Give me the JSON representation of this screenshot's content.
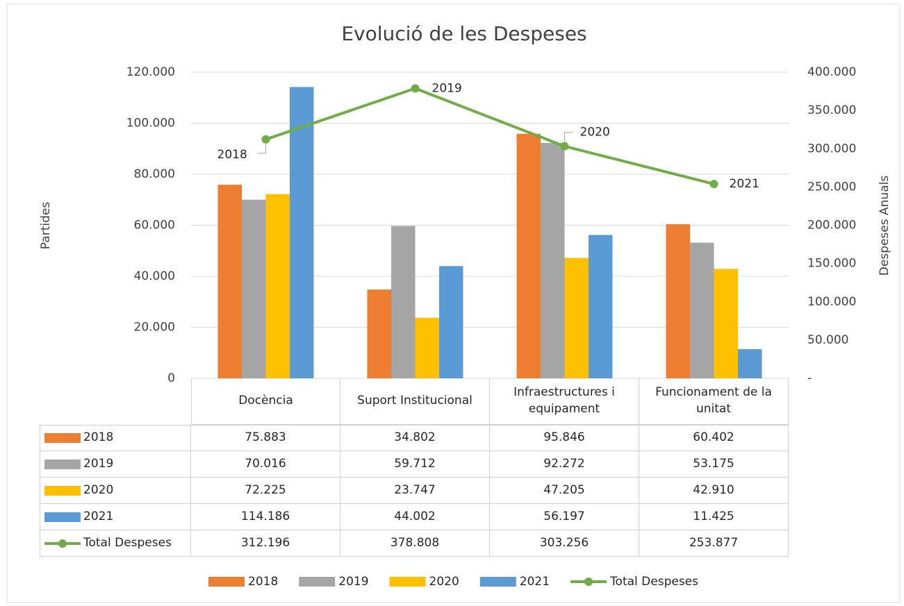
{
  "chart_data": {
    "type": "bar",
    "title": "Evolució de les Despeses",
    "ylabel": "Partides",
    "y2label": "Despeses Anuals",
    "categories": [
      "Docència",
      "Suport Institucional",
      "Infraestructures i equipament",
      "Funcionament de la unitat"
    ],
    "series": [
      {
        "name": "2018",
        "color": "#ed7d31",
        "values": [
          75883,
          34802,
          95846,
          60402
        ],
        "value_labels": [
          "75.883",
          "34.802",
          "95.846",
          "60.402"
        ]
      },
      {
        "name": "2019",
        "color": "#a5a5a5",
        "values": [
          70016,
          59712,
          92272,
          53175
        ],
        "value_labels": [
          "70.016",
          "59.712",
          "92.272",
          "53.175"
        ]
      },
      {
        "name": "2020",
        "color": "#ffc000",
        "values": [
          72225,
          23747,
          47205,
          42910
        ],
        "value_labels": [
          "72.225",
          "23.747",
          "47.205",
          "42.910"
        ]
      },
      {
        "name": "2021",
        "color": "#5b9bd5",
        "values": [
          114186,
          44002,
          56197,
          11425
        ],
        "value_labels": [
          "114.186",
          "44.002",
          "56.197",
          "11.425"
        ]
      },
      {
        "name": "Total Despeses",
        "type": "line",
        "axis": "y2",
        "color": "#70ad47",
        "values": [
          312196,
          378808,
          303256,
          253877
        ],
        "value_labels": [
          "312.196",
          "378.808",
          "303.256",
          "253.877"
        ],
        "point_labels": [
          "2018",
          "2019",
          "2020",
          "2021"
        ]
      }
    ],
    "ylim": [
      0,
      120000
    ],
    "yticks": [
      0,
      {
        "value": 20000,
        "label": "20.000"
      },
      {
        "value": 40000,
        "label": "40.000"
      },
      {
        "value": 60000,
        "label": "60.000"
      },
      {
        "value": 80000,
        "label": "80.000"
      },
      {
        "value": 100000,
        "label": "100.000"
      },
      {
        "value": 120000,
        "label": "120.000"
      }
    ],
    "y2lim": [
      0,
      400000
    ],
    "y2ticks": [
      {
        "value": 0,
        "label": "-"
      },
      {
        "value": 50000,
        "label": "50.000"
      },
      {
        "value": 100000,
        "label": "100.000"
      },
      {
        "value": 150000,
        "label": "150.000"
      },
      {
        "value": 200000,
        "label": "200.000"
      },
      {
        "value": 250000,
        "label": "250.000"
      },
      {
        "value": 300000,
        "label": "300.000"
      },
      {
        "value": 350000,
        "label": "350.000"
      },
      {
        "value": 400000,
        "label": "400.000"
      }
    ],
    "grid": true,
    "legend": "bottom"
  }
}
